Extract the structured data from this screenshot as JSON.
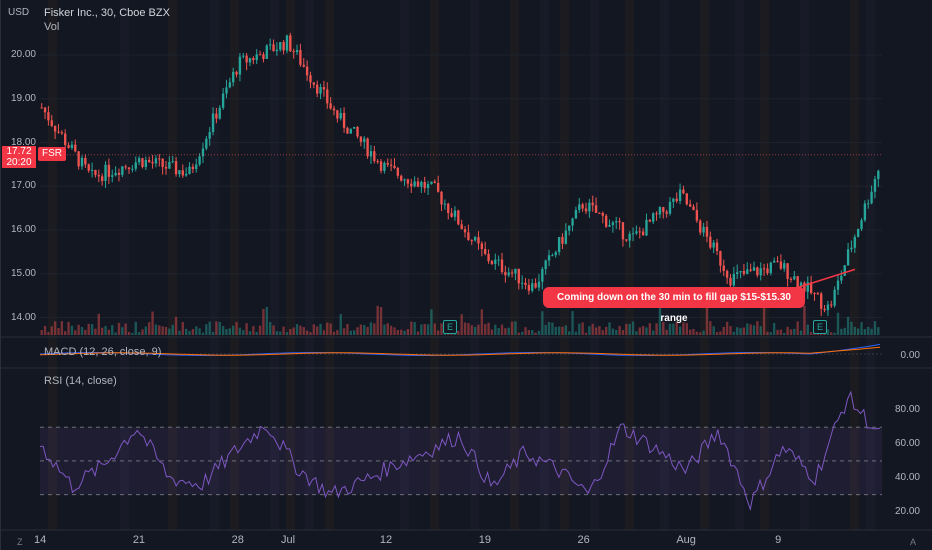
{
  "header": {
    "symbol_title": "Fisker Inc., 30, Cboe BZX",
    "volume_label": "Vol",
    "currency": "USD"
  },
  "price_badge": {
    "price": "17.72",
    "countdown": "20:20",
    "ticker": "FSR"
  },
  "annotation": {
    "text": "Coming down on the 30 min to fill gap $15-$15.30 range"
  },
  "earnings_marker": {
    "label": "E"
  },
  "indicators": {
    "macd_label": "MACD (12, 26, close, 9)",
    "macd_value": "0.00",
    "rsi_label": "RSI (14, close)"
  },
  "footer": {
    "left_corner": "Z",
    "right_corner": "A"
  },
  "chart_data": [
    {
      "type": "line",
      "title": "Fisker Inc., 30, Cboe BZX",
      "ylabel": "USD",
      "x": [
        "14",
        "",
        "21",
        "",
        "28",
        "Jul",
        "",
        "12",
        "",
        "19",
        "",
        "26",
        "",
        "Aug",
        "",
        "9",
        "",
        ""
      ],
      "y": [
        18.8,
        17.2,
        17.6,
        17.3,
        19.8,
        20.3,
        18.6,
        17.4,
        16.9,
        15.4,
        14.7,
        16.6,
        15.8,
        16.8,
        14.9,
        15.2,
        14.2,
        17.4
      ],
      "price_ticks": [
        "20.00",
        "19.00",
        "18.00",
        "17.00",
        "16.00",
        "15.00",
        "14.00"
      ],
      "ylim": [
        13.6,
        20.8
      ],
      "x_tick_labels": [
        "14",
        "21",
        "28",
        "Jul",
        "12",
        "19",
        "26",
        "Aug",
        "9"
      ],
      "colors": {
        "up": "#26a69a",
        "down": "#ef5350",
        "rsi": "#7e57c2",
        "macd": "#2962ff",
        "signal": "#ff6d00"
      }
    },
    {
      "type": "line",
      "title": "RSI (14, close)",
      "y": [
        60,
        35,
        48,
        70,
        40,
        36,
        55,
        72,
        45,
        30,
        38,
        48,
        56,
        65,
        34,
        55,
        45,
        30,
        70,
        58,
        44,
        68,
        25,
        58,
        40,
        88,
        65
      ],
      "rsi_ticks": [
        "80.00",
        "60.00",
        "40.00",
        "20.00"
      ],
      "ylim": [
        15,
        95
      ]
    }
  ]
}
